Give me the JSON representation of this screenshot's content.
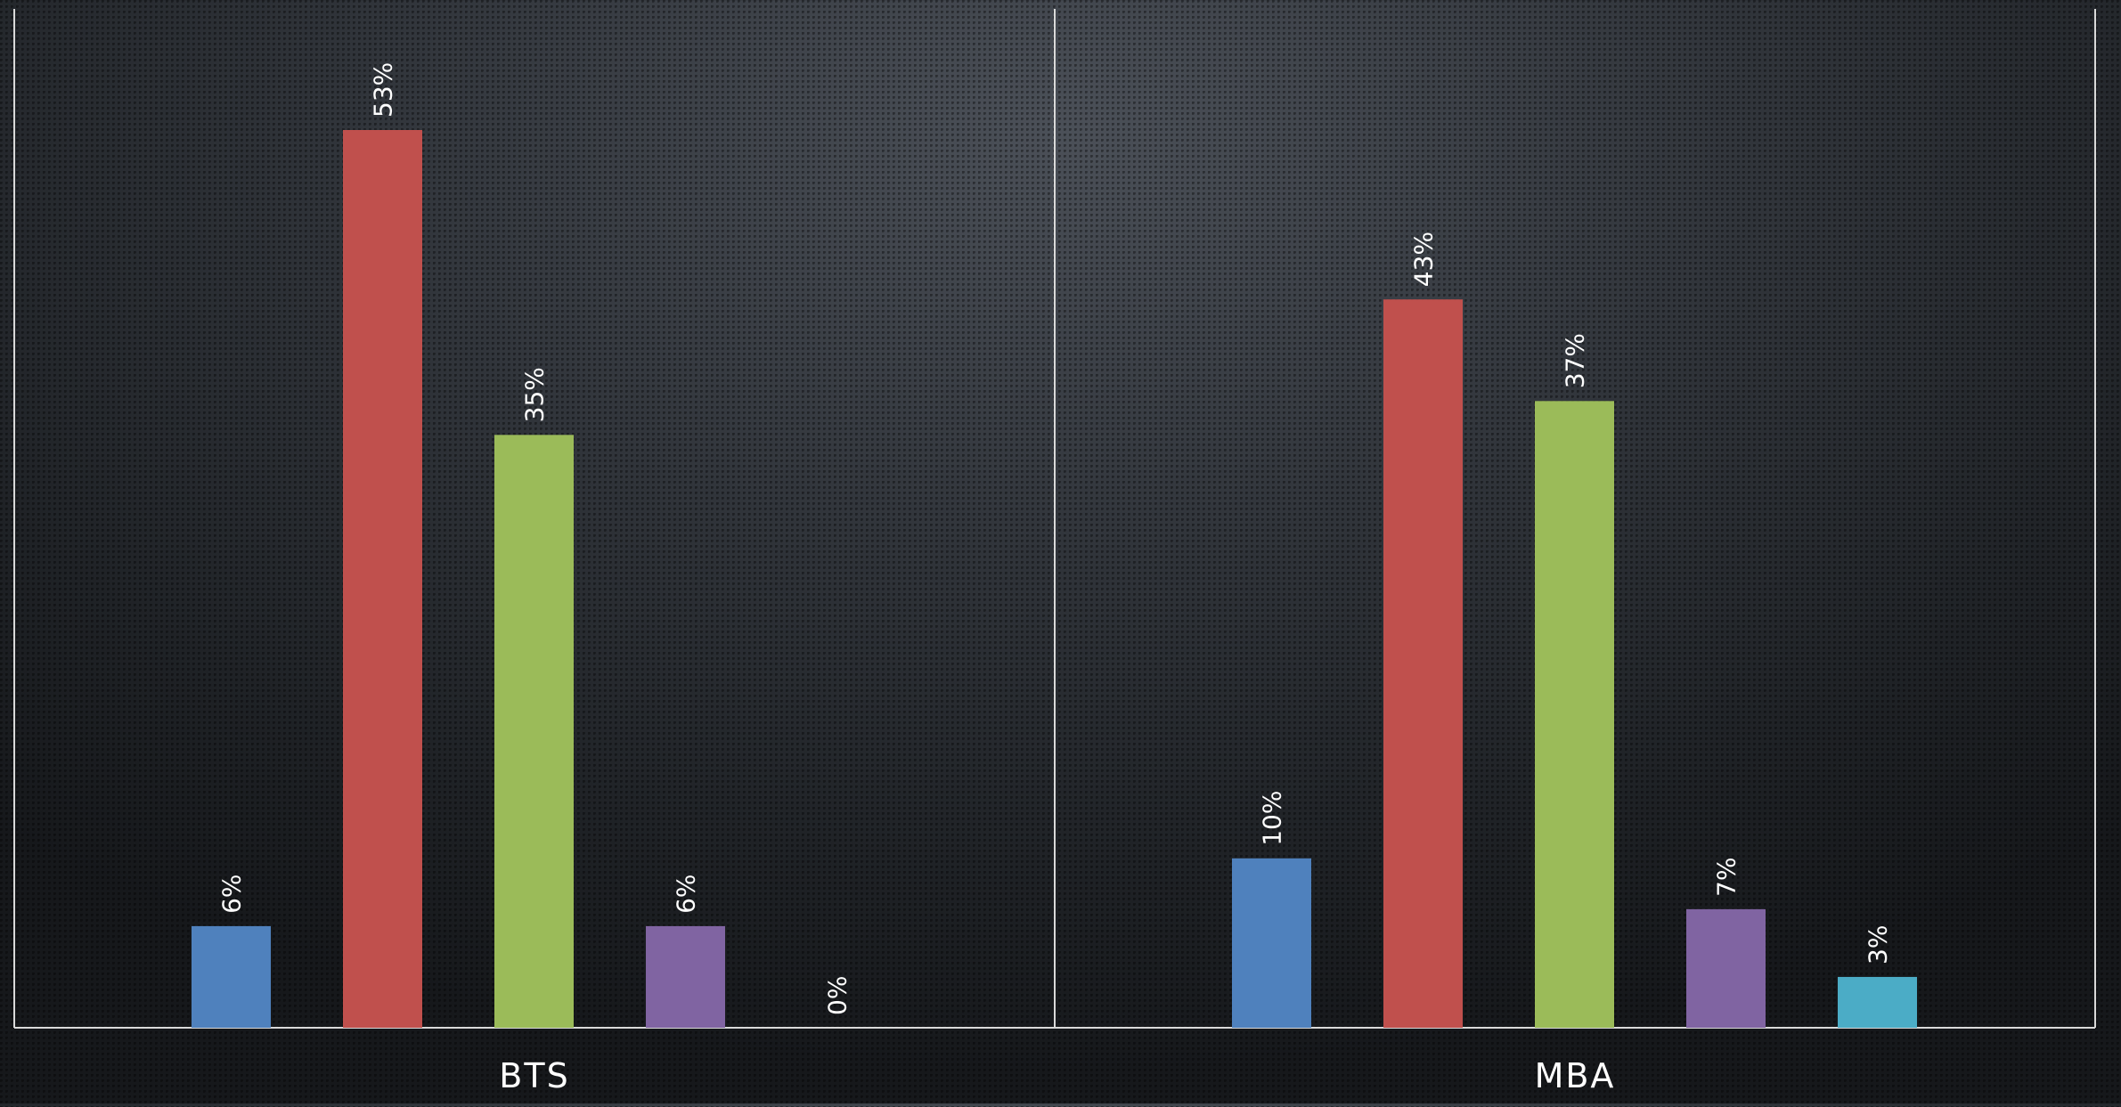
{
  "chart_data": {
    "type": "bar",
    "categories": [
      "BTS",
      "MBA"
    ],
    "series": [
      {
        "color": "#4f81bd",
        "values": [
          6,
          10
        ]
      },
      {
        "color": "#c0504d",
        "values": [
          53,
          43
        ]
      },
      {
        "color": "#9bbb59",
        "values": [
          35,
          37
        ]
      },
      {
        "color": "#8064a2",
        "values": [
          6,
          7
        ]
      },
      {
        "color": "#4bacc6",
        "values": [
          0,
          3
        ]
      }
    ],
    "data_labels": [
      [
        "6%",
        "53%",
        "35%",
        "6%",
        "0%"
      ],
      [
        "10%",
        "43%",
        "37%",
        "7%",
        "3%"
      ]
    ],
    "value_unit": "%",
    "ylim": [
      0,
      60
    ],
    "grid": false,
    "legend": "none",
    "axis_color": "#d9d9d9"
  }
}
